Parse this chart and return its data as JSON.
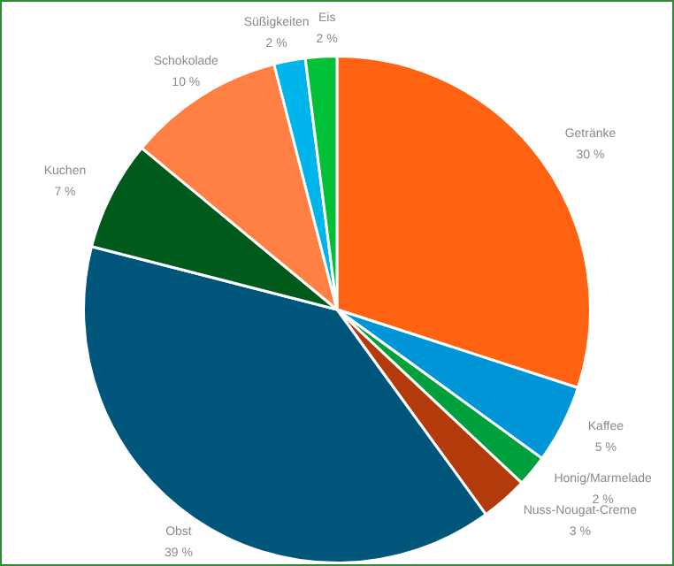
{
  "chart_data": {
    "type": "pie",
    "categories": [
      "Getränke",
      "Kaffee",
      "Honig/Marmelade",
      "Nuss-Nougat-Creme",
      "Obst",
      "Kuchen",
      "Schokolade",
      "Süßigkeiten",
      "Eis"
    ],
    "values": [
      30,
      5,
      2,
      3,
      39,
      7,
      10,
      2,
      2
    ],
    "value_labels": [
      "30 %",
      "5 %",
      "2 %",
      "3 %",
      "39 %",
      "7 %",
      "10 %",
      "2 %",
      "2 %"
    ],
    "colors": [
      "#ff6312",
      "#0095d6",
      "#00a03c",
      "#b33a0a",
      "#00557a",
      "#005a1b",
      "#ff7f45",
      "#00b4ec",
      "#00c035"
    ],
    "legend": false
  }
}
